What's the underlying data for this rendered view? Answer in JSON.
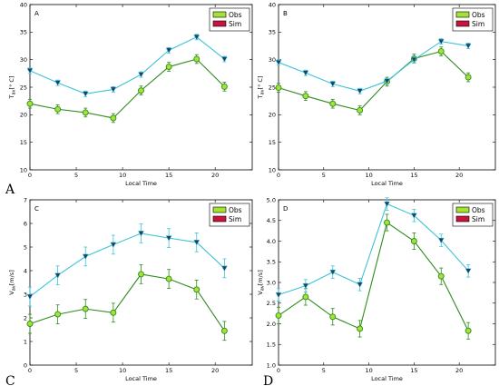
{
  "colors": {
    "obs_line": "#2e8b1e",
    "obs_fill": "#a4e233",
    "sim_line": "#3cc4d6",
    "sim_fill": "#c8143c",
    "sim_marker": "#1f3f66",
    "errbar": "#3cc4d6",
    "errbar_obs": "#2e8b1e"
  },
  "chart_data": [
    {
      "type": "line",
      "panel_label": "A",
      "figure_label": "A",
      "xlabel": "Local Time",
      "ylabel": "T_av [° C]",
      "ylabel_main": "T",
      "ylabel_sub": "av",
      "ylabel_unit": "[° C]",
      "xlim": [
        0,
        24
      ],
      "ylim": [
        10,
        40
      ],
      "xticks": [
        "0",
        "5",
        "10",
        "15",
        "20"
      ],
      "yticks": [
        "10",
        "15",
        "20",
        "25",
        "30",
        "35",
        "40"
      ],
      "legend_position": "top-right",
      "legend": [
        "Obs",
        "Sim"
      ],
      "x": [
        0,
        3,
        6,
        9,
        12,
        15,
        18,
        21
      ],
      "series": [
        {
          "name": "Obs",
          "values": [
            22.0,
            21.0,
            20.4,
            19.4,
            24.4,
            28.7,
            30.1,
            25.1
          ],
          "err": [
            0.8,
            0.8,
            0.8,
            0.8,
            0.8,
            0.8,
            0.8,
            0.8
          ]
        },
        {
          "name": "Sim",
          "values": [
            28.0,
            25.8,
            23.8,
            24.6,
            27.3,
            31.7,
            34.1,
            30.1
          ],
          "err": [
            0.5,
            0.5,
            0.5,
            0.5,
            0.5,
            0.5,
            0.5,
            0.5
          ]
        }
      ]
    },
    {
      "type": "line",
      "panel_label": "B",
      "figure_label": "",
      "xlabel": "Local Time",
      "ylabel": "T_av [° C]",
      "ylabel_main": "T",
      "ylabel_sub": "av",
      "ylabel_unit": "[° C]",
      "xlim": [
        0,
        24
      ],
      "ylim": [
        10,
        40
      ],
      "xticks": [
        "0",
        "5",
        "10",
        "15",
        "20"
      ],
      "yticks": [
        "10",
        "15",
        "20",
        "25",
        "30",
        "35",
        "40"
      ],
      "legend_position": "top-right",
      "legend": [
        "Obs",
        "Sim"
      ],
      "x": [
        0,
        3,
        6,
        9,
        12,
        15,
        18,
        21
      ],
      "series": [
        {
          "name": "Obs",
          "values": [
            24.9,
            23.4,
            22.0,
            20.8,
            26.0,
            30.2,
            31.5,
            26.8
          ],
          "err": [
            0.8,
            0.8,
            0.8,
            0.8,
            0.8,
            0.8,
            0.8,
            0.8
          ]
        },
        {
          "name": "Sim",
          "values": [
            29.5,
            27.6,
            25.6,
            24.3,
            26.1,
            30.0,
            33.3,
            32.5
          ],
          "err": [
            0.5,
            0.5,
            0.5,
            0.5,
            0.5,
            0.5,
            0.5,
            0.5
          ]
        }
      ]
    },
    {
      "type": "line",
      "panel_label": "C",
      "figure_label": "C",
      "xlabel": "Local Time",
      "ylabel": "V_av [m/s]",
      "ylabel_main": "V",
      "ylabel_sub": "av",
      "ylabel_unit": "[m/s]",
      "xlim": [
        0,
        24
      ],
      "ylim": [
        0,
        7
      ],
      "xticks": [
        "0",
        "5",
        "10",
        "15",
        "20"
      ],
      "yticks": [
        "0",
        "1",
        "2",
        "3",
        "4",
        "5",
        "6",
        "7"
      ],
      "legend_position": "top-right",
      "legend": [
        "Obs",
        "Sim"
      ],
      "x": [
        0,
        3,
        6,
        9,
        12,
        15,
        18,
        21
      ],
      "series": [
        {
          "name": "Obs",
          "values": [
            1.75,
            2.15,
            2.38,
            2.22,
            3.85,
            3.65,
            3.2,
            1.45
          ],
          "err": [
            0.4,
            0.4,
            0.4,
            0.4,
            0.4,
            0.4,
            0.4,
            0.4
          ]
        },
        {
          "name": "Sim",
          "values": [
            2.9,
            3.8,
            4.6,
            5.1,
            5.58,
            5.38,
            5.2,
            4.1
          ],
          "err": [
            0.4,
            0.4,
            0.4,
            0.4,
            0.4,
            0.4,
            0.4,
            0.4
          ]
        }
      ]
    },
    {
      "type": "line",
      "panel_label": "D",
      "figure_label": "D",
      "xlabel": "Local Time",
      "ylabel": "V_av [m/s]",
      "ylabel_main": "V",
      "ylabel_sub": "av",
      "ylabel_unit": "[m/s]",
      "xlim": [
        0,
        24
      ],
      "ylim": [
        1.0,
        5.0
      ],
      "xticks": [
        "0",
        "5",
        "10",
        "15",
        "20"
      ],
      "yticks": [
        "1.0",
        "1.5",
        "2.0",
        "2.5",
        "3.0",
        "3.5",
        "4.0",
        "4.5",
        "5.0"
      ],
      "legend_position": "top-right",
      "legend": [
        "Obs",
        "Sim"
      ],
      "x": [
        0,
        3,
        6,
        9,
        12,
        15,
        18,
        21
      ],
      "series": [
        {
          "name": "Obs",
          "values": [
            2.2,
            2.65,
            2.17,
            1.88,
            4.45,
            4.0,
            3.15,
            1.83
          ],
          "err": [
            0.2,
            0.2,
            0.2,
            0.2,
            0.2,
            0.2,
            0.2,
            0.2
          ]
        },
        {
          "name": "Sim",
          "values": [
            2.7,
            2.92,
            3.25,
            2.95,
            4.9,
            4.62,
            4.02,
            3.28
          ],
          "err": [
            0.15,
            0.15,
            0.15,
            0.15,
            0.15,
            0.15,
            0.15,
            0.15
          ]
        }
      ]
    }
  ]
}
